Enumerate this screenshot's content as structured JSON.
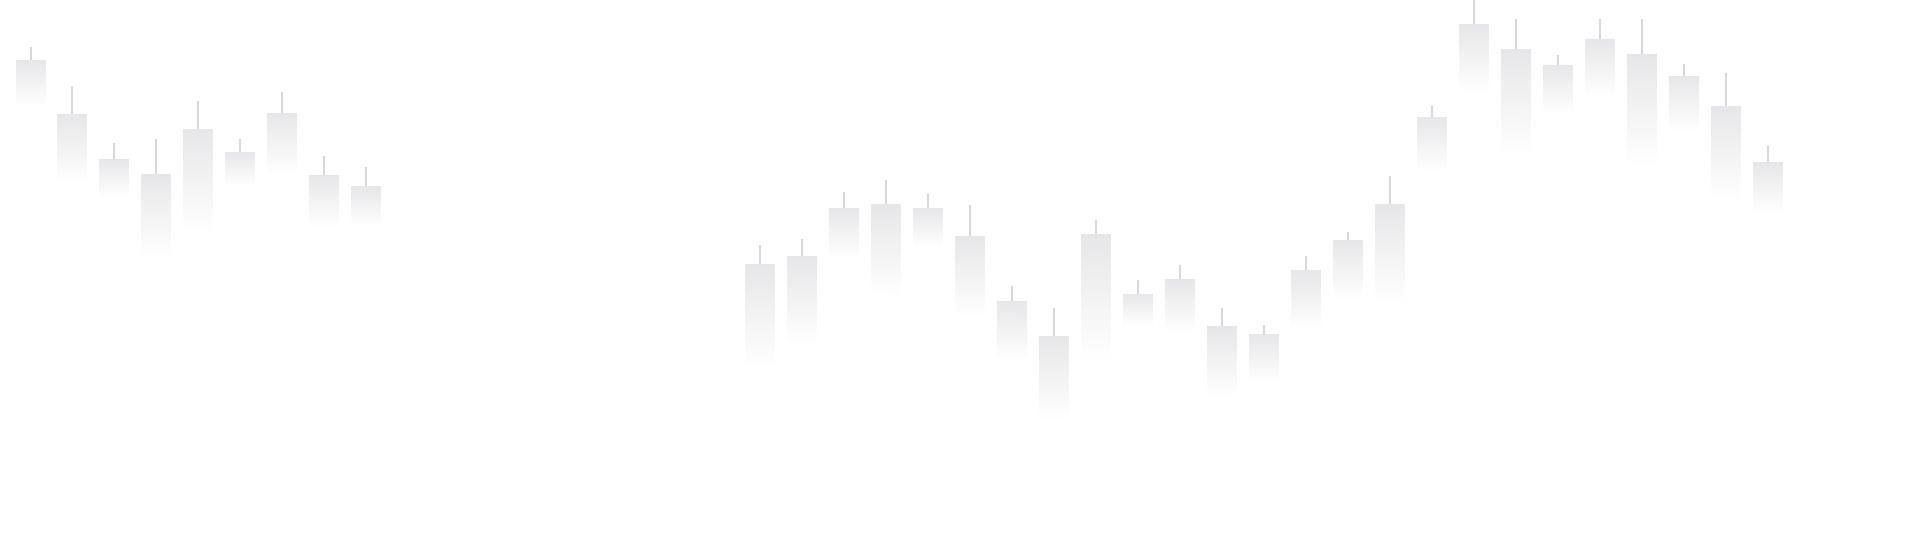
{
  "chart_data": {
    "type": "candlestick",
    "title": "",
    "xlabel": "",
    "ylabel": "",
    "grid": false,
    "axes_visible": false,
    "legend": "none",
    "ylim": [
      0,
      532
    ],
    "candle_color": "#dcdcdf",
    "wick_color": "#d8d8dc",
    "candles": [
      {
        "high": 485,
        "open": 472,
        "low": 426
      },
      {
        "high": 446,
        "open": 418,
        "low": 350
      },
      {
        "high": 389,
        "open": 373,
        "low": 335
      },
      {
        "high": 393,
        "open": 358,
        "low": 276
      },
      {
        "high": 431,
        "open": 403,
        "low": 301
      },
      {
        "high": 393,
        "open": 380,
        "low": 346
      },
      {
        "high": 440,
        "open": 419,
        "low": 358
      },
      {
        "high": 376,
        "open": 357,
        "low": 305
      },
      {
        "high": 365,
        "open": 346,
        "low": 306
      },
      {
        "high": 287,
        "open": 268,
        "low": 167
      },
      {
        "high": 293,
        "open": 276,
        "low": 188
      },
      {
        "high": 340,
        "open": 324,
        "low": 275
      },
      {
        "high": 352,
        "open": 328,
        "low": 236
      },
      {
        "high": 338,
        "open": 324,
        "low": 285
      },
      {
        "high": 327,
        "open": 296,
        "low": 216
      },
      {
        "high": 246,
        "open": 231,
        "low": 173
      },
      {
        "high": 224,
        "open": 196,
        "low": 113
      },
      {
        "high": 312,
        "open": 298,
        "low": 174
      },
      {
        "high": 252,
        "open": 238,
        "low": 206
      },
      {
        "high": 267,
        "open": 253,
        "low": 200
      },
      {
        "high": 224,
        "open": 206,
        "low": 136
      },
      {
        "high": 207,
        "open": 198,
        "low": 150
      },
      {
        "high": 276,
        "open": 262,
        "low": 203
      },
      {
        "high": 300,
        "open": 292,
        "low": 233
      },
      {
        "high": 356,
        "open": 328,
        "low": 230
      },
      {
        "high": 426,
        "open": 415,
        "low": 361
      },
      {
        "high": 532,
        "open": 508,
        "low": 440
      },
      {
        "high": 513,
        "open": 483,
        "low": 378
      },
      {
        "high": 477,
        "open": 467,
        "low": 420
      },
      {
        "high": 513,
        "open": 493,
        "low": 436
      },
      {
        "high": 513,
        "open": 478,
        "low": 367
      },
      {
        "high": 468,
        "open": 456,
        "low": 401
      },
      {
        "high": 459,
        "open": 426,
        "low": 334
      },
      {
        "high": 386,
        "open": 370,
        "low": 320
      }
    ]
  }
}
